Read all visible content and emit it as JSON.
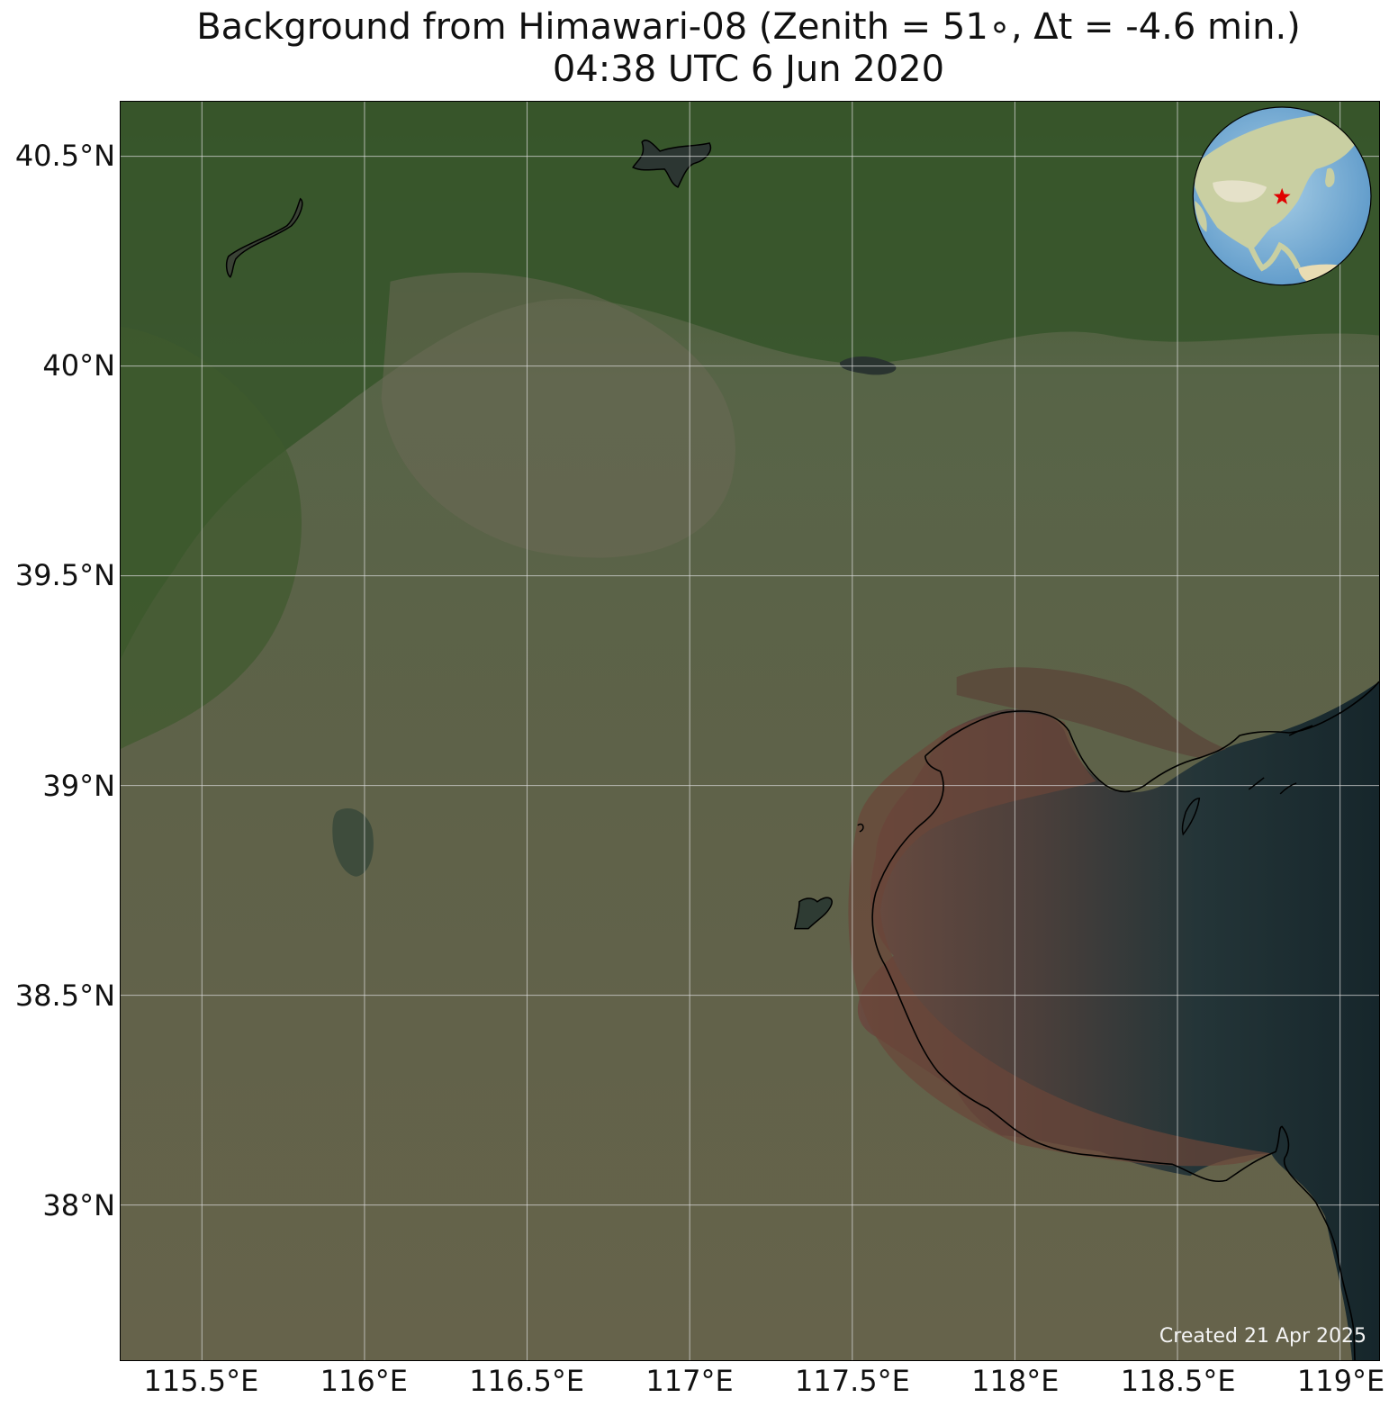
{
  "title": {
    "line1": "Background from Himawari-08 (Zenith = 51∘, Δt = -4.6 min.)",
    "line2": "04:38 UTC 6 Jun 2020"
  },
  "map": {
    "lon_range": [
      115.25,
      119.12
    ],
    "lat_range": [
      37.63,
      40.63
    ],
    "lat_gridlines": [
      {
        "value": 40.5,
        "label": "40.5°N"
      },
      {
        "value": 40.0,
        "label": "40°N"
      },
      {
        "value": 39.5,
        "label": "39.5°N"
      },
      {
        "value": 39.0,
        "label": "39°N"
      },
      {
        "value": 38.5,
        "label": "38.5°N"
      },
      {
        "value": 38.0,
        "label": "38°N"
      }
    ],
    "lon_gridlines": [
      {
        "value": 115.5,
        "label": "115.5°E"
      },
      {
        "value": 116.0,
        "label": "116°E"
      },
      {
        "value": 116.5,
        "label": "116.5°E"
      },
      {
        "value": 117.0,
        "label": "117°E"
      },
      {
        "value": 117.5,
        "label": "117.5°E"
      },
      {
        "value": 118.0,
        "label": "118°E"
      },
      {
        "value": 118.5,
        "label": "118.5°E"
      },
      {
        "value": 119.0,
        "label": "119°E"
      }
    ],
    "colors": {
      "land": "#5d6147",
      "mountains": "#2f5a22",
      "sea": "#1c2b2f",
      "mudflat": "#6b4d42",
      "gridline": "#d8d8d8",
      "coastline": "#000000"
    },
    "inset_globe": {
      "marker_icon": "red-star-icon",
      "marker_color": "#e00000"
    }
  },
  "credit": "Created 21 Apr 2025"
}
